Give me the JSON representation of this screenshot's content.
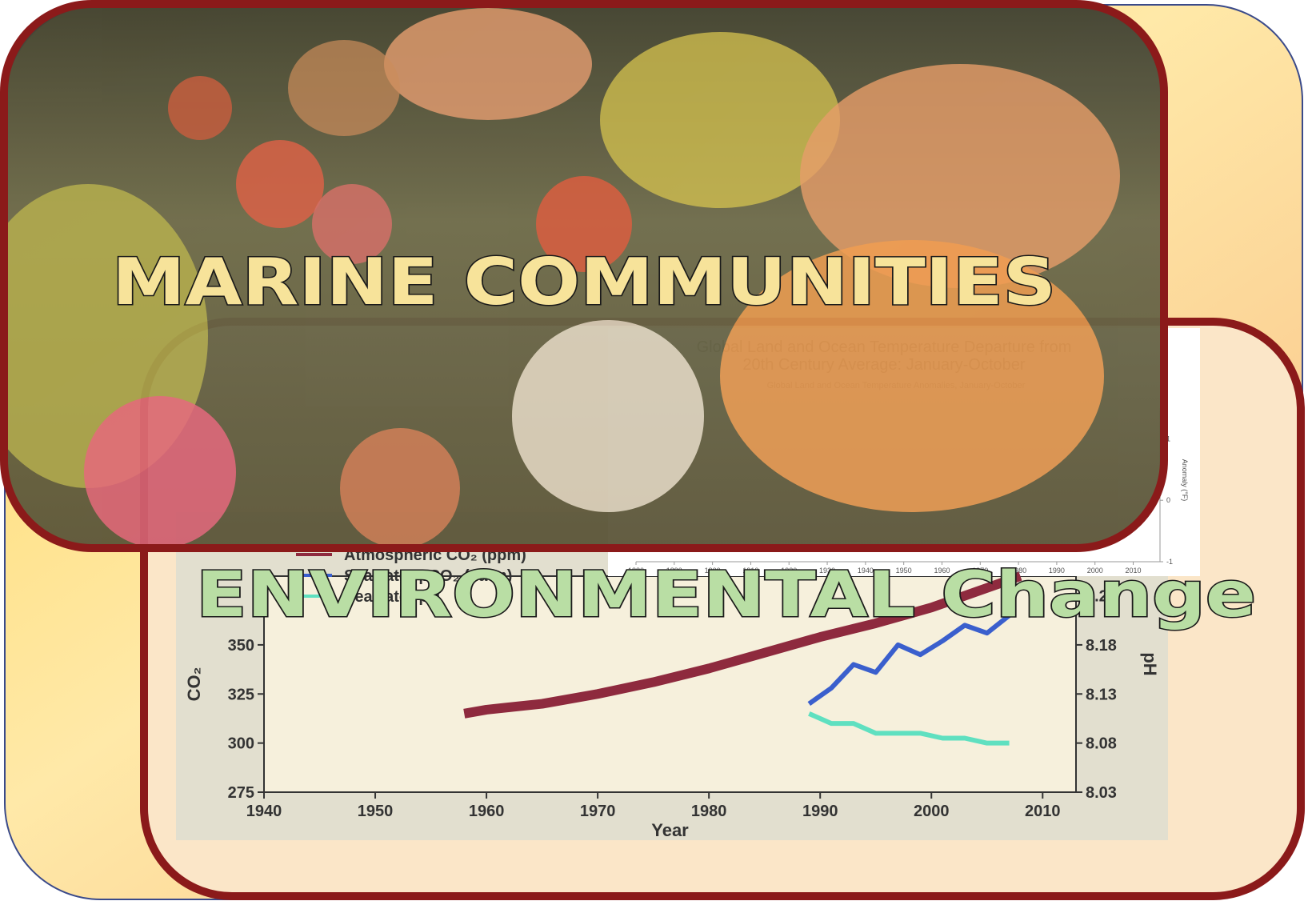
{
  "panels": {
    "top": {
      "title": "MARINE COMMUNITIES"
    },
    "bottom": {
      "title": "ENVIRONMENTAL Change"
    }
  },
  "chart_data": [
    {
      "type": "line",
      "x_label": "Year",
      "y_label": "CO₂",
      "y2_label": "pH",
      "xlim": [
        1940,
        2013
      ],
      "xticks": [
        1940,
        1950,
        1960,
        1970,
        1980,
        1990,
        2000,
        2010
      ],
      "ylim": [
        275,
        385
      ],
      "yticks": [
        275,
        300,
        325,
        350
      ],
      "y2lim": [
        8.03,
        8.25
      ],
      "y2ticks": [
        8.03,
        8.08,
        8.13,
        8.18,
        8.23
      ],
      "series": [
        {
          "name": "Atmospheric CO₂ (ppm)",
          "color": "#8e2a3e",
          "x": [
            1958,
            1960,
            1965,
            1970,
            1975,
            1980,
            1985,
            1990,
            1995,
            2000,
            2005,
            2008
          ],
          "values": [
            315,
            317,
            320,
            325,
            331,
            338,
            346,
            354,
            361,
            369,
            379,
            385
          ]
        },
        {
          "name": "Seawater pCO₂ (µatm)",
          "color": "#3a5fcd",
          "x": [
            1989,
            1991,
            1993,
            1995,
            1997,
            1999,
            2001,
            2003,
            2005,
            2007
          ],
          "values": [
            320,
            328,
            340,
            336,
            350,
            345,
            352,
            360,
            356,
            365
          ]
        },
        {
          "name": "Seawater pH",
          "color": "#5fe0c0",
          "axis": "y2",
          "x": [
            1989,
            1991,
            1993,
            1995,
            1997,
            1999,
            2001,
            2003,
            2005,
            2007
          ],
          "values": [
            8.11,
            8.1,
            8.1,
            8.09,
            8.09,
            8.09,
            8.085,
            8.085,
            8.08,
            8.08
          ]
        }
      ]
    },
    {
      "type": "bar",
      "title": "Global Land and Ocean Temperature Departure from",
      "subtitle": "20th Century Average: January-October",
      "caption": "Global Land and Ocean Temperature Anomalies, January-October",
      "y_label": "Anomaly (°F)",
      "xlim": [
        1880,
        2017
      ],
      "xticks": [
        1880,
        1890,
        1900,
        1910,
        1920,
        1930,
        1940,
        1950,
        1960,
        1970,
        1980,
        1990,
        2000,
        2010
      ],
      "ylim": [
        -1,
        1.5
      ],
      "yticks": [
        -1,
        0,
        1
      ]
    }
  ]
}
